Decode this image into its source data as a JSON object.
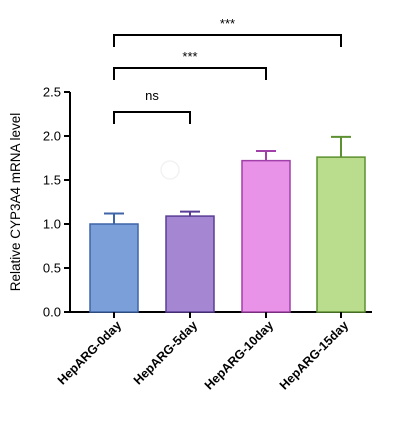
{
  "chart_data": {
    "type": "bar",
    "title": "",
    "xlabel": "",
    "ylabel": "Relative CYP3A4 mRNA level",
    "categories": [
      "HepARG-0day",
      "HepARG-5day",
      "HepARG-10day",
      "HepARG-15day"
    ],
    "values": [
      1.0,
      1.09,
      1.72,
      1.76
    ],
    "errors": [
      0.12,
      0.05,
      0.11,
      0.23
    ],
    "colors": [
      "#7b9fd8",
      "#a486d2",
      "#e892e8",
      "#b9dd8c"
    ],
    "edge_colors": [
      "#3f65a8",
      "#5a3e96",
      "#a040a8",
      "#5c9030"
    ],
    "ylim": [
      0.0,
      2.5
    ],
    "yticks": [
      "0.0",
      "0.5",
      "1.0",
      "1.5",
      "2.0",
      "2.5"
    ],
    "grid": false,
    "legend": "none",
    "comparisons": [
      {
        "from": 0,
        "to": 1,
        "label": "ns",
        "level": 1
      },
      {
        "from": 0,
        "to": 2,
        "label": "***",
        "level": 2
      },
      {
        "from": 0,
        "to": 3,
        "label": "***",
        "level": 3
      }
    ]
  }
}
